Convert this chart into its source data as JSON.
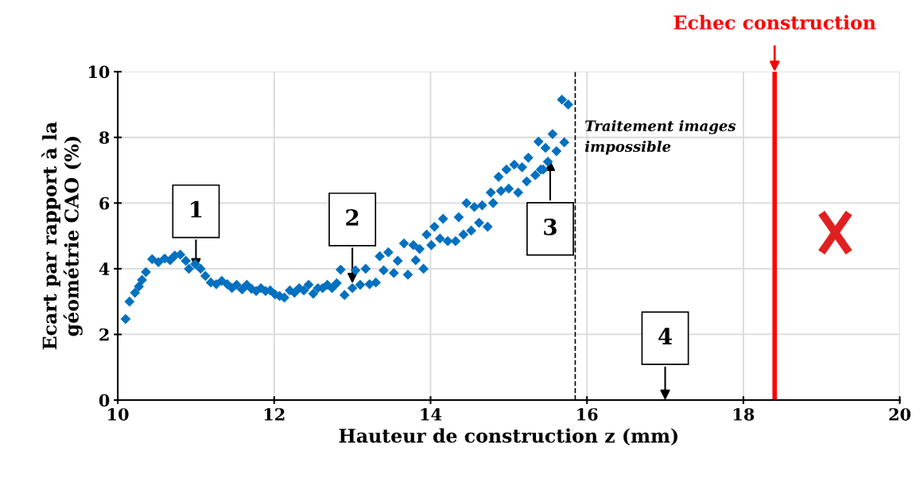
{
  "chart_data": {
    "type": "scatter",
    "xlabel": "Hauteur de construction z (mm)",
    "ylabel": "Ecart par rapport à la\ngéométrie CAO (%)",
    "xlim": [
      10,
      20
    ],
    "ylim": [
      0,
      10
    ],
    "xticks": [
      10,
      12,
      14,
      16,
      18,
      20
    ],
    "yticks": [
      0,
      2,
      4,
      6,
      8,
      10
    ],
    "grid": true,
    "marker": "diamond",
    "series": [
      {
        "color": "#0070c0",
        "x": [
          10.1,
          10.15,
          10.22,
          10.27,
          10.31,
          10.36,
          10.44,
          10.52,
          10.6,
          10.67,
          10.73,
          10.8,
          10.87,
          10.91,
          10.99,
          11.06,
          11.12,
          11.19,
          11.26,
          11.33,
          11.4,
          11.46,
          11.52,
          11.59,
          11.65,
          11.71,
          11.77,
          11.83,
          11.89,
          11.95,
          12.01,
          12.07,
          12.13,
          12.2,
          12.26,
          12.32,
          12.38,
          12.44,
          12.5,
          12.56,
          12.62,
          12.68,
          12.74,
          12.8,
          12.85,
          12.9,
          13.0,
          13.04,
          13.1,
          13.17,
          13.22,
          13.3,
          13.35,
          13.4,
          13.46,
          13.53,
          13.58,
          13.66,
          13.71,
          13.78,
          13.81,
          13.86,
          13.91,
          13.95,
          14.01,
          14.05,
          14.12,
          14.16,
          14.22,
          14.32,
          14.36,
          14.42,
          14.46,
          14.52,
          14.56,
          14.62,
          14.66,
          14.73,
          14.77,
          14.8,
          14.87,
          14.9,
          14.97,
          15.0,
          15.07,
          15.12,
          15.17,
          15.23,
          15.25,
          15.34,
          15.38,
          15.41,
          15.44,
          15.47,
          15.5,
          15.56,
          15.61,
          15.68,
          15.71,
          15.76
        ],
        "values": [
          2.47,
          3.0,
          3.27,
          3.46,
          3.66,
          3.9,
          4.29,
          4.2,
          4.31,
          4.26,
          4.4,
          4.43,
          4.24,
          4.0,
          4.14,
          4.0,
          3.78,
          3.58,
          3.53,
          3.63,
          3.53,
          3.41,
          3.51,
          3.37,
          3.51,
          3.39,
          3.32,
          3.41,
          3.32,
          3.34,
          3.22,
          3.17,
          3.12,
          3.34,
          3.27,
          3.41,
          3.34,
          3.51,
          3.24,
          3.41,
          3.41,
          3.51,
          3.41,
          3.56,
          3.97,
          3.2,
          3.41,
          3.95,
          3.51,
          4.0,
          3.53,
          3.58,
          4.38,
          3.95,
          4.5,
          3.87,
          4.24,
          4.77,
          3.82,
          4.72,
          4.26,
          4.6,
          4.0,
          5.04,
          4.72,
          5.28,
          4.92,
          5.52,
          4.84,
          4.84,
          5.57,
          5.04,
          6.0,
          5.16,
          5.88,
          5.4,
          5.93,
          5.28,
          6.32,
          6.0,
          6.8,
          6.37,
          7.02,
          6.44,
          7.17,
          6.32,
          7.09,
          6.66,
          7.38,
          6.85,
          7.87,
          7.02,
          7.02,
          7.68,
          7.26,
          8.1,
          7.58,
          9.15,
          7.85,
          9.0
        ]
      }
    ],
    "ref_lines": [
      {
        "axis": "x",
        "value": 15.85,
        "label": "Traitement images\nimpossible",
        "color": "#000000",
        "line_style": "dashed"
      },
      {
        "axis": "x",
        "value": 18.4,
        "label": "Echec construction",
        "color": "#ff0000",
        "line_style": "solid"
      }
    ],
    "annotations": [
      {
        "text": "1",
        "x": 11.0,
        "y": 4.0
      },
      {
        "text": "2",
        "x": 13.0,
        "y": 3.55
      },
      {
        "text": "3",
        "x": 15.53,
        "y": 7.3
      },
      "4"
    ]
  }
}
